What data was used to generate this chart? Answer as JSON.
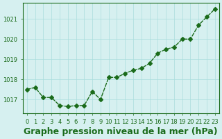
{
  "x": [
    0,
    1,
    2,
    3,
    4,
    5,
    6,
    7,
    8,
    9,
    10,
    11,
    12,
    13,
    14,
    15,
    16,
    17,
    18,
    19,
    20,
    21,
    22,
    23
  ],
  "y": [
    1017.5,
    1017.6,
    1017.1,
    1017.1,
    1016.7,
    1016.65,
    1016.7,
    1016.7,
    1017.4,
    1017.0,
    1018.1,
    1018.1,
    1018.3,
    1018.45,
    1018.55,
    1018.8,
    1019.3,
    1019.5,
    1019.6,
    1020.0,
    1020.0,
    1020.7,
    1021.1,
    1021.5
  ],
  "line_color": "#1a6b1a",
  "marker": "D",
  "marker_size": 3,
  "bg_color": "#d6f0f0",
  "grid_color": "#aadddd",
  "xlabel": "Graphe pression niveau de la mer (hPa)",
  "xlabel_color": "#1a6b1a",
  "xlabel_fontsize": 9,
  "yticks": [
    1017,
    1018,
    1019,
    1020,
    1021
  ],
  "ylim": [
    1016.3,
    1021.8
  ],
  "xlim": [
    -0.5,
    23.5
  ],
  "xtick_labels": [
    "0",
    "1",
    "2",
    "3",
    "4",
    "5",
    "6",
    "7",
    "8",
    "9",
    "10",
    "11",
    "12",
    "13",
    "14",
    "15",
    "16",
    "17",
    "18",
    "19",
    "20",
    "21",
    "22",
    "23"
  ],
  "tick_color": "#1a6b1a",
  "tick_fontsize": 6,
  "spine_color": "#1a6b1a"
}
